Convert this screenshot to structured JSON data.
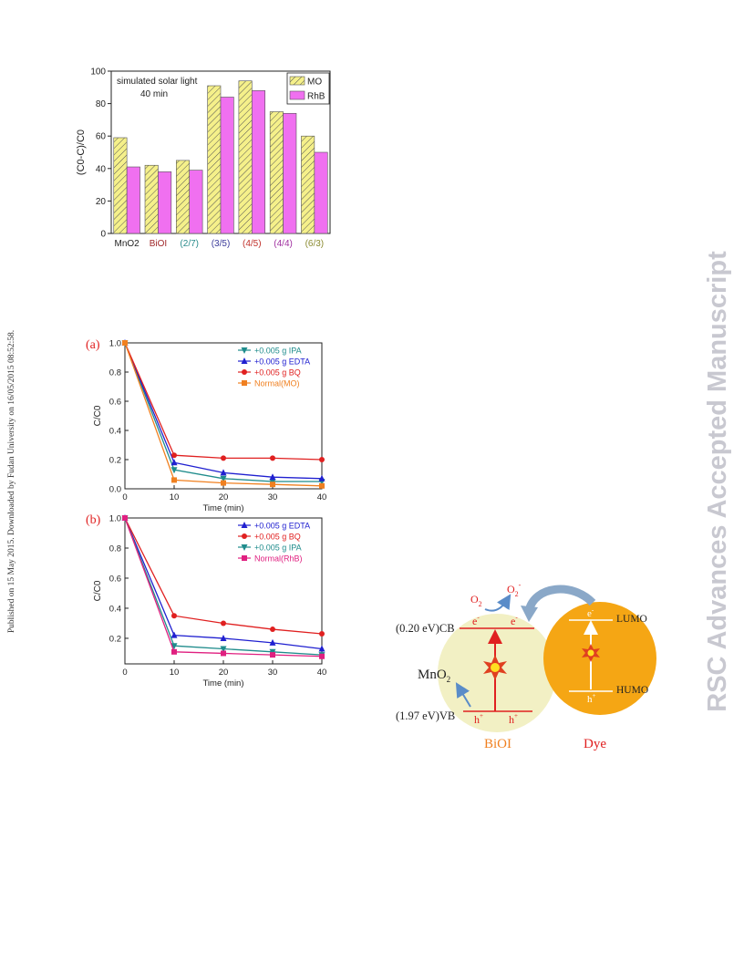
{
  "side_note": "Published on 15 May 2015. Downloaded by Fudan University on 16/05/2015 08:52:58.",
  "watermark": "RSC Advances Accepted Manuscript",
  "figure_bar": {
    "chart_data": {
      "type": "bar",
      "title": "simulated solar light",
      "subtitle": "40 min",
      "ylabel": "(C0-C)/C0",
      "xlabel": "",
      "ylim": [
        0,
        100
      ],
      "yticks": [
        "0",
        "20",
        "40",
        "60",
        "80",
        "100"
      ],
      "categories": [
        "MnO2",
        "BiOI",
        "(2/7)",
        "(3/5)",
        "(4/5)",
        "(4/4)",
        "(6/3)"
      ],
      "category_colors": [
        "#222222",
        "#a0282a",
        "#2a8c8c",
        "#3a3a9a",
        "#c0302a",
        "#a030a0",
        "#8a8a30"
      ],
      "series": [
        {
          "name": "MO",
          "values": [
            59,
            42,
            45,
            91,
            94,
            75,
            60
          ],
          "color": "#f5f08a",
          "pattern": "hatch"
        },
        {
          "name": "RhB",
          "values": [
            41,
            38,
            39,
            84,
            88,
            74,
            50
          ],
          "color": "#f070f0",
          "pattern": "solid"
        }
      ],
      "legend": "top-right",
      "grid": false
    }
  },
  "figure_lines": {
    "chart_data": [
      {
        "panel": "(a)",
        "type": "line",
        "xlabel": "Time (min)",
        "ylabel": "C/C0",
        "x": [
          0,
          10,
          20,
          30,
          40
        ],
        "xticks": [
          "0",
          "10",
          "20",
          "30",
          "40"
        ],
        "yticks": [
          "0.0",
          "0.2",
          "0.4",
          "0.6",
          "0.8",
          "1.0"
        ],
        "xlim": [
          0,
          40
        ],
        "ylim": [
          0,
          1.0
        ],
        "legend": "top-right",
        "series": [
          {
            "name": "+0.005 g IPA",
            "values": [
              1.0,
              0.13,
              0.07,
              0.05,
              0.05
            ],
            "color": "#1f8c8c",
            "marker": "triangle-down"
          },
          {
            "name": "+0.005 g EDTA",
            "values": [
              1.0,
              0.18,
              0.11,
              0.08,
              0.07
            ],
            "color": "#2020d0",
            "marker": "triangle-up"
          },
          {
            "name": "+0.005 g BQ",
            "values": [
              1.0,
              0.23,
              0.21,
              0.21,
              0.2
            ],
            "color": "#e02020",
            "marker": "circle"
          },
          {
            "name": "Normal(MO)",
            "values": [
              1.0,
              0.06,
              0.04,
              0.03,
              0.02
            ],
            "color": "#f08020",
            "marker": "square"
          }
        ]
      },
      {
        "panel": "(b)",
        "type": "line",
        "xlabel": "Time (min)",
        "ylabel": "C/C0",
        "x": [
          0,
          10,
          20,
          30,
          40
        ],
        "xticks": [
          "0",
          "10",
          "20",
          "30",
          "40"
        ],
        "yticks": [
          "0.2",
          "0.4",
          "0.6",
          "0.8",
          "1.0"
        ],
        "xlim": [
          0,
          40
        ],
        "ylim": [
          0.03,
          1.0
        ],
        "legend": "top-right",
        "series": [
          {
            "name": "+0.005 g EDTA",
            "values": [
              1.0,
              0.22,
              0.2,
              0.17,
              0.13
            ],
            "color": "#2020d0",
            "marker": "triangle-up"
          },
          {
            "name": "+0.005 g BQ",
            "values": [
              1.0,
              0.35,
              0.3,
              0.26,
              0.23
            ],
            "color": "#e02020",
            "marker": "circle"
          },
          {
            "name": "+0.005 g IPA",
            "values": [
              1.0,
              0.15,
              0.13,
              0.11,
              0.09
            ],
            "color": "#1f8c8c",
            "marker": "triangle-down"
          },
          {
            "name": "Normal(RhB)",
            "values": [
              1.0,
              0.11,
              0.1,
              0.09,
              0.08
            ],
            "color": "#e02080",
            "marker": "square"
          }
        ]
      }
    ]
  },
  "scheme": {
    "o2_label": "O",
    "o2_sub": "2",
    "o2_radical": "O",
    "o2_radical_sub": "2",
    "o2_radical_sup": "-",
    "cb_label": "(0.20 eV)CB",
    "vb_label": "(1.97 eV)VB",
    "mno2_label": "MnO",
    "mno2_sub": "2",
    "electron_symbol": "e",
    "electron_sup": "-",
    "hole_symbol": "h",
    "hole_sup": "+",
    "lumo_label": "LUMO",
    "humo_label": "HUMO",
    "biol_label": "BiOI",
    "dye_label": "Dye",
    "colors": {
      "biol_fill": "#f2f0c4",
      "dye_fill": "#f5a614",
      "band": "#e02020",
      "arrow": "#5a8cc8",
      "label_red": "#e02020",
      "label_orange": "#f08020"
    }
  }
}
